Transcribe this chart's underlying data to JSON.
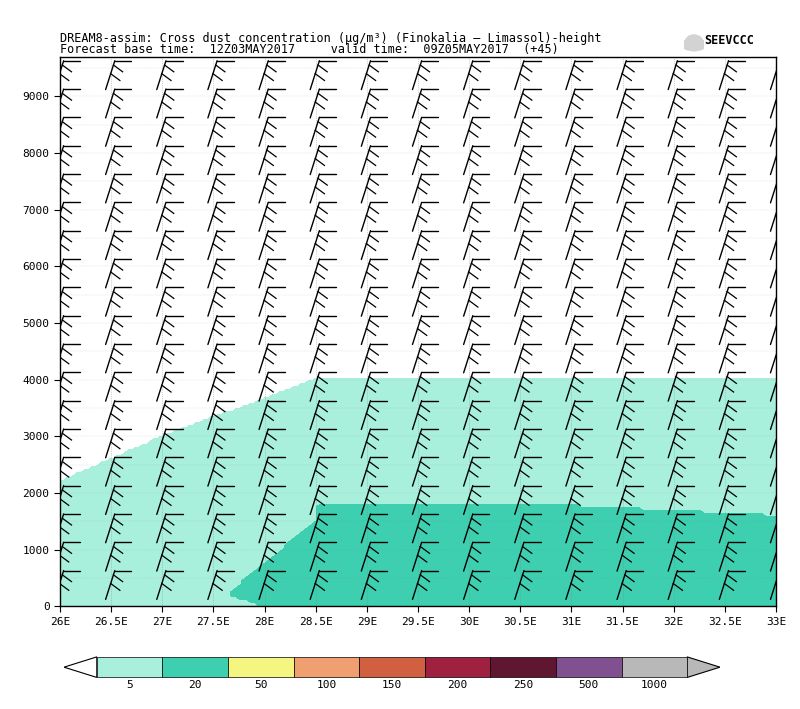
{
  "title_line1": "DREAM8-assim: Cross dust concentration (μg/m³) (Finokalia – Limassol)-height",
  "title_line2": "Forecast base time:  12Z03MAY2017     valid time:  09Z05MAY2017  (+45)",
  "xmin": 26.0,
  "xmax": 33.0,
  "ymin": 0,
  "ymax": 9700,
  "xticks": [
    26.0,
    26.5,
    27.0,
    27.5,
    28.0,
    28.5,
    29.0,
    29.5,
    30.0,
    30.5,
    31.0,
    31.5,
    32.0,
    32.5,
    33.0
  ],
  "xticklabels": [
    "26E",
    "26.5E",
    "27E",
    "27.5E",
    "28E",
    "28.5E",
    "29E",
    "29.5E",
    "30E",
    "30.5E",
    "31E",
    "31.5E",
    "32E",
    "32.5E",
    "33E"
  ],
  "yticks": [
    0,
    1000,
    2000,
    3000,
    4000,
    5000,
    6000,
    7000,
    8000,
    9000
  ],
  "colorbar_levels": [
    5,
    20,
    50,
    100,
    150,
    200,
    250,
    500,
    1000
  ],
  "colorbar_colors": [
    "#a8f0dc",
    "#3ecfb0",
    "#f5f582",
    "#f0a070",
    "#d06040",
    "#a02040",
    "#601530",
    "#805090",
    "#b8b8b8"
  ],
  "bg_color": "#ffffff",
  "light_dust_color": "#a8f0dc",
  "medium_dust_color": "#3ecfb0"
}
